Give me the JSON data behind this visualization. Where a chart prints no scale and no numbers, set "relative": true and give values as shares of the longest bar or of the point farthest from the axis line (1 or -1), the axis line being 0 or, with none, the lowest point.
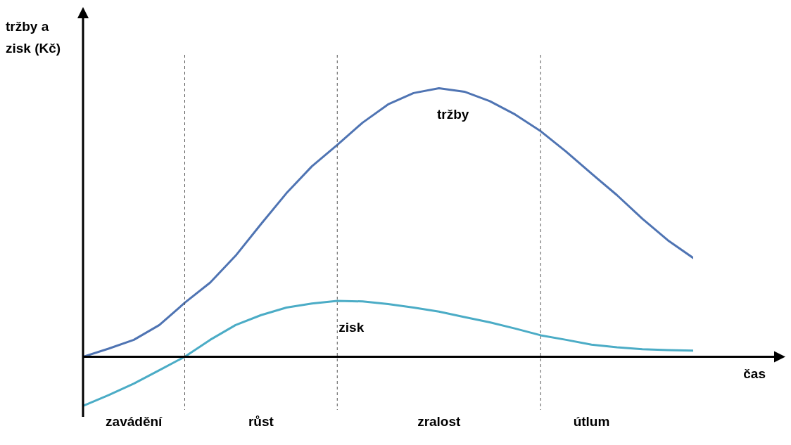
{
  "chart_data": {
    "type": "line",
    "relative": true,
    "grid": "x",
    "ylabel": "tržby a zisk (Kč)",
    "xlabel": "čas",
    "categories": [
      null,
      null,
      "zavádění",
      null,
      null,
      null,
      null,
      "růst",
      null,
      null,
      null,
      null,
      null,
      null,
      "zralost",
      null,
      null,
      null,
      null,
      null,
      "útlum",
      null,
      null,
      null,
      null
    ],
    "series": [
      {
        "name": "tržby",
        "color": "#4f74b3",
        "values": [
          0,
          0.03,
          0.063,
          0.118,
          0.201,
          0.276,
          0.376,
          0.494,
          0.609,
          0.709,
          0.789,
          0.872,
          0.94,
          0.982,
          1,
          0.987,
          0.952,
          0.902,
          0.84,
          0.764,
          0.682,
          0.602,
          0.514,
          0.434,
          0.368
        ]
      },
      {
        "name": "zisk",
        "color": "#4bacc6",
        "values": [
          -0.183,
          -0.143,
          -0.1,
          -0.05,
          0,
          0.063,
          0.118,
          0.155,
          0.183,
          0.198,
          0.208,
          0.206,
          0.196,
          0.183,
          0.168,
          0.148,
          0.128,
          0.105,
          0.08,
          0.063,
          0.045,
          0.035,
          0.028,
          0.025,
          0.023
        ]
      }
    ]
  }
}
